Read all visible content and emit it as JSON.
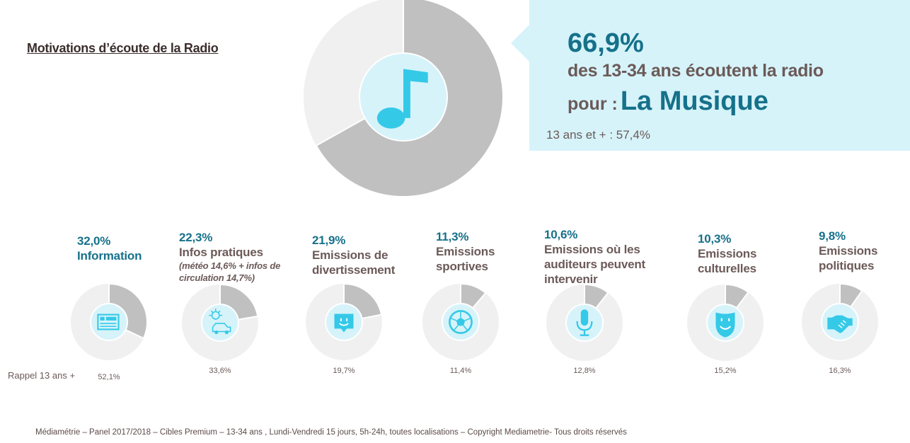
{
  "title": "Motivations d’écoute de la Radio",
  "chart_data": {
    "type": "pie",
    "title": "Motivations d’écoute de la Radio",
    "main": {
      "value": 66.9,
      "pct_label": "66,9%",
      "line1": "des 13-34 ans écoutent la radio",
      "line2_prefix": "pour :",
      "line2_em": "La Musique",
      "reference": "13 ans et + : 57,4%",
      "reference_value": 57.4,
      "icon": "music-note-icon"
    },
    "categories": [
      {
        "value": 32.0,
        "pct_label": "32,0%",
        "label": "Information",
        "note": "",
        "rappel": "52,1%",
        "icon": "newspaper-icon"
      },
      {
        "value": 22.3,
        "pct_label": "22,3%",
        "label": "Infos pratiques",
        "note": "(météo 14,6% + infos de circulation 14,7%)",
        "rappel": "33,6%",
        "icon": "sun-car-icon"
      },
      {
        "value": 21.9,
        "pct_label": "21,9%",
        "label": "Emissions de divertissement",
        "note": "",
        "rappel": "19,7%",
        "icon": "smiley-bubble-icon"
      },
      {
        "value": 11.3,
        "pct_label": "11,3%",
        "label": "Emissions sportives",
        "note": "",
        "rappel": "11,4%",
        "icon": "football-icon"
      },
      {
        "value": 10.6,
        "pct_label": "10,6%",
        "label": "Emissions où les auditeurs peuvent intervenir",
        "note": "",
        "rappel": "12,8%",
        "icon": "microphone-icon"
      },
      {
        "value": 10.3,
        "pct_label": "10,3%",
        "label": "Emissions culturelles",
        "note": "",
        "rappel": "15,2%",
        "icon": "theatre-mask-icon"
      },
      {
        "value": 9.8,
        "pct_label": "9,8%",
        "label": "Emissions politiques",
        "note": "",
        "rappel": "16,3%",
        "icon": "handshake-icon"
      }
    ],
    "rappel_label": "Rappel 13 ans +"
  },
  "footer": "Médiamétrie – Panel 2017/2018 – Cibles Premium – 13-34 ans , Lundi-Vendredi 15 jours, 5h-24h, toutes localisations – Copyright Mediametrie- Tous droits réservés",
  "colors": {
    "filled": "#c0c0c0",
    "empty": "#f0f0f0",
    "accent": "#16718a",
    "icon": "#35c9e8",
    "icon_bg": "#d6f3fa",
    "text": "#6b5a58"
  }
}
